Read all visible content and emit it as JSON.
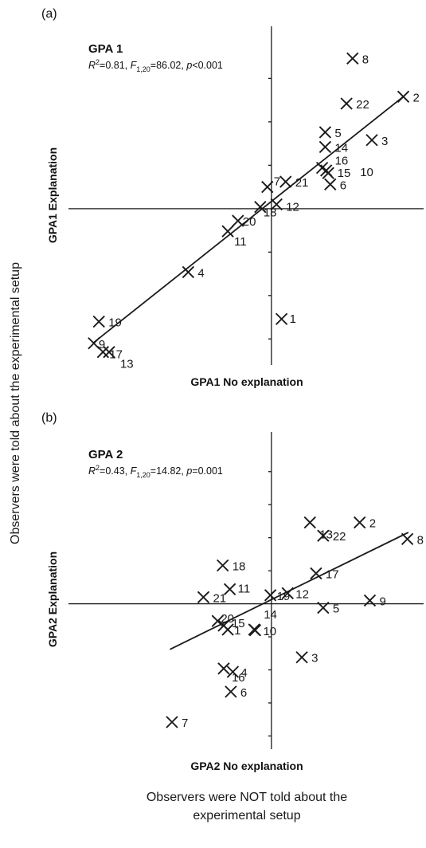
{
  "figure": {
    "outer_ylabel": "Observers were told about the experimental setup",
    "outer_xlabel_line1": "Observers were NOT told about the",
    "outer_xlabel_line2": "experimental setup"
  },
  "chart_data": [
    {
      "type": "scatter",
      "panel_label": "(a)",
      "title": "GPA 1",
      "stats": {
        "r2_prefix": "R",
        "r2_sup": "2",
        "r2_value": "=0.81, ",
        "f_prefix": "F",
        "f_sub": "1,20",
        "f_value": "=86.02, ",
        "p_prefix": "p",
        "p_value": "<0.001"
      },
      "xlabel": "GPA1 No explanation",
      "ylabel": "GPA1 Explanation",
      "xlim": [
        -2.0,
        1.5
      ],
      "ylim": [
        -1.8,
        2.1
      ],
      "y_ticks": [
        -1.5,
        -1.0,
        -0.5,
        0.5,
        1.0,
        1.5
      ],
      "fit_line": {
        "x": [
          -1.75,
          1.3
        ],
        "y": [
          -1.54,
          1.29
        ]
      },
      "points": [
        {
          "label": "1",
          "x": 0.1,
          "y": -1.27
        },
        {
          "label": "2",
          "x": 1.3,
          "y": 1.29
        },
        {
          "label": "3",
          "x": 0.99,
          "y": 0.79
        },
        {
          "label": "4",
          "x": -0.82,
          "y": -0.73
        },
        {
          "label": "5",
          "x": 0.53,
          "y": 0.88
        },
        {
          "label": "6",
          "x": 0.58,
          "y": 0.28
        },
        {
          "label": "7",
          "x": -0.04,
          "y": 0.25
        },
        {
          "label": "8",
          "x": 0.8,
          "y": 1.73
        },
        {
          "label": "9",
          "x": -1.75,
          "y": -1.55
        },
        {
          "label": "10",
          "x": 0.56,
          "y": 0.41
        },
        {
          "label": "11",
          "x": -0.43,
          "y": -0.26
        },
        {
          "label": "12",
          "x": 0.05,
          "y": 0.05
        },
        {
          "label": "13",
          "x": -1.6,
          "y": -1.65
        },
        {
          "label": "14",
          "x": 0.53,
          "y": 0.71
        },
        {
          "label": "15",
          "x": 0.54,
          "y": 0.44
        },
        {
          "label": "16",
          "x": 0.5,
          "y": 0.47
        },
        {
          "label": "17",
          "x": -1.66,
          "y": -1.65
        },
        {
          "label": "18",
          "x": -0.11,
          "y": 0.02
        },
        {
          "label": "19",
          "x": -1.7,
          "y": -1.3
        },
        {
          "label": "20",
          "x": -0.33,
          "y": -0.14
        },
        {
          "label": "21",
          "x": 0.14,
          "y": 0.31
        },
        {
          "label": "22",
          "x": 0.74,
          "y": 1.21
        }
      ]
    },
    {
      "type": "scatter",
      "panel_label": "(b)",
      "title": "GPA 2",
      "stats": {
        "r2_prefix": "R",
        "r2_sup": "2",
        "r2_value": "=0.43, ",
        "f_prefix": "F",
        "f_sub": "1,20",
        "f_value": "=14.82, ",
        "p_prefix": "p",
        "p_value": "=0.001"
      },
      "xlabel": "GPA2 No explanation",
      "ylabel": "GPA2 Explanation",
      "xlim": [
        -2.0,
        1.5
      ],
      "ylim": [
        -2.2,
        2.6
      ],
      "y_ticks": [
        -2.0,
        -1.5,
        -1.0,
        -0.5,
        0.5,
        1.0,
        1.5,
        2.0
      ],
      "fit_line": {
        "x": [
          -1.0,
          1.35
        ],
        "y": [
          -0.69,
          1.08
        ]
      },
      "points": [
        {
          "label": "1",
          "x": -0.43,
          "y": -0.39
        },
        {
          "label": "2",
          "x": 0.87,
          "y": 1.23
        },
        {
          "label": "3",
          "x": 0.3,
          "y": -0.81
        },
        {
          "label": "4",
          "x": -0.38,
          "y": -1.03
        },
        {
          "label": "5",
          "x": 0.51,
          "y": -0.06
        },
        {
          "label": "6",
          "x": -0.4,
          "y": -1.33
        },
        {
          "label": "7",
          "x": -0.98,
          "y": -1.79
        },
        {
          "label": "8",
          "x": 1.34,
          "y": 0.98
        },
        {
          "label": "9",
          "x": 0.97,
          "y": 0.05
        },
        {
          "label": "10",
          "x": -0.16,
          "y": -0.4
        },
        {
          "label": "11",
          "x": -0.41,
          "y": 0.22
        },
        {
          "label": "12",
          "x": 0.16,
          "y": 0.16
        },
        {
          "label": "13",
          "x": 0.38,
          "y": 1.23
        },
        {
          "label": "14",
          "x": -0.17,
          "y": -0.39
        },
        {
          "label": "15",
          "x": -0.47,
          "y": -0.33
        },
        {
          "label": "16",
          "x": -0.47,
          "y": -0.98
        },
        {
          "label": "17",
          "x": 0.44,
          "y": 0.46
        },
        {
          "label": "18",
          "x": -0.48,
          "y": 0.58
        },
        {
          "label": "19",
          "x": -0.01,
          "y": 0.13
        },
        {
          "label": "20",
          "x": -0.53,
          "y": -0.26
        },
        {
          "label": "21",
          "x": -0.67,
          "y": 0.1
        },
        {
          "label": "22",
          "x": 0.51,
          "y": 1.03
        }
      ]
    }
  ]
}
